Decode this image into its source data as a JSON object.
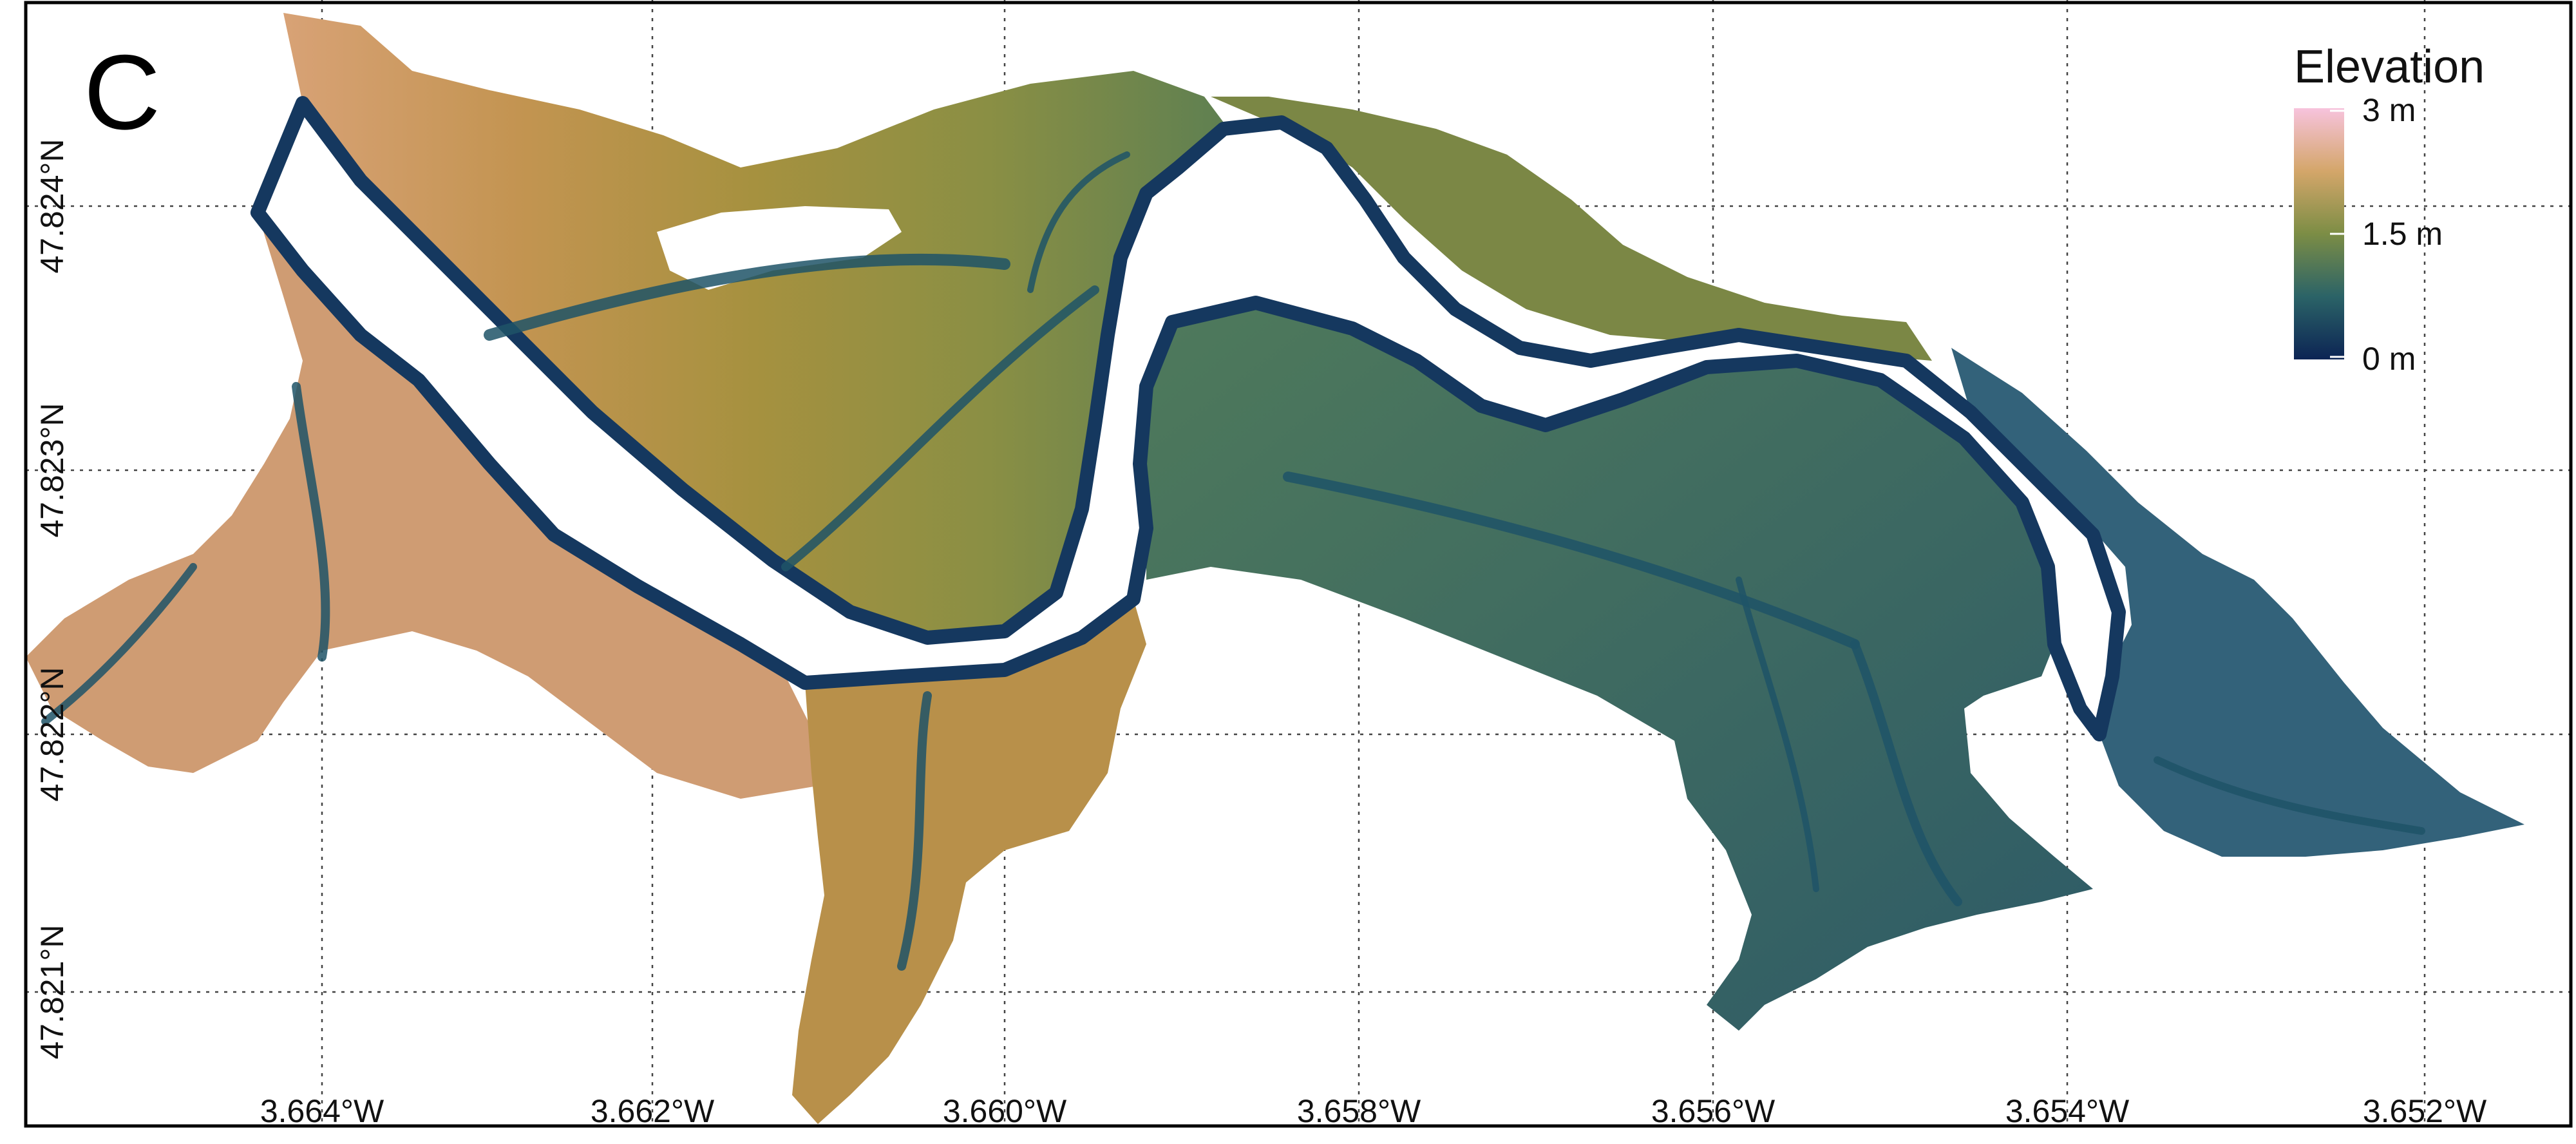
{
  "panel_label": "C",
  "legend": {
    "title": "Elevation",
    "ticks": [
      {
        "label": "3 m",
        "value": 3
      },
      {
        "label": "1.5 m",
        "value": 1.5
      },
      {
        "label": "0 m",
        "value": 0
      }
    ],
    "colors": {
      "high": "#f5b8d6",
      "mid_high": "#bf9646",
      "mid": "#6c8a49",
      "mid_low": "#2f6a6c",
      "low": "#0c2454"
    }
  },
  "axes": {
    "longitude_labels": [
      "3.664°W",
      "3.662°W",
      "3.660°W",
      "3.658°W",
      "3.656°W",
      "3.654°W",
      "3.652°W"
    ],
    "latitude_labels": [
      "47.824°N",
      "47.823°N",
      "47.822°N",
      "47.821°N"
    ]
  }
}
